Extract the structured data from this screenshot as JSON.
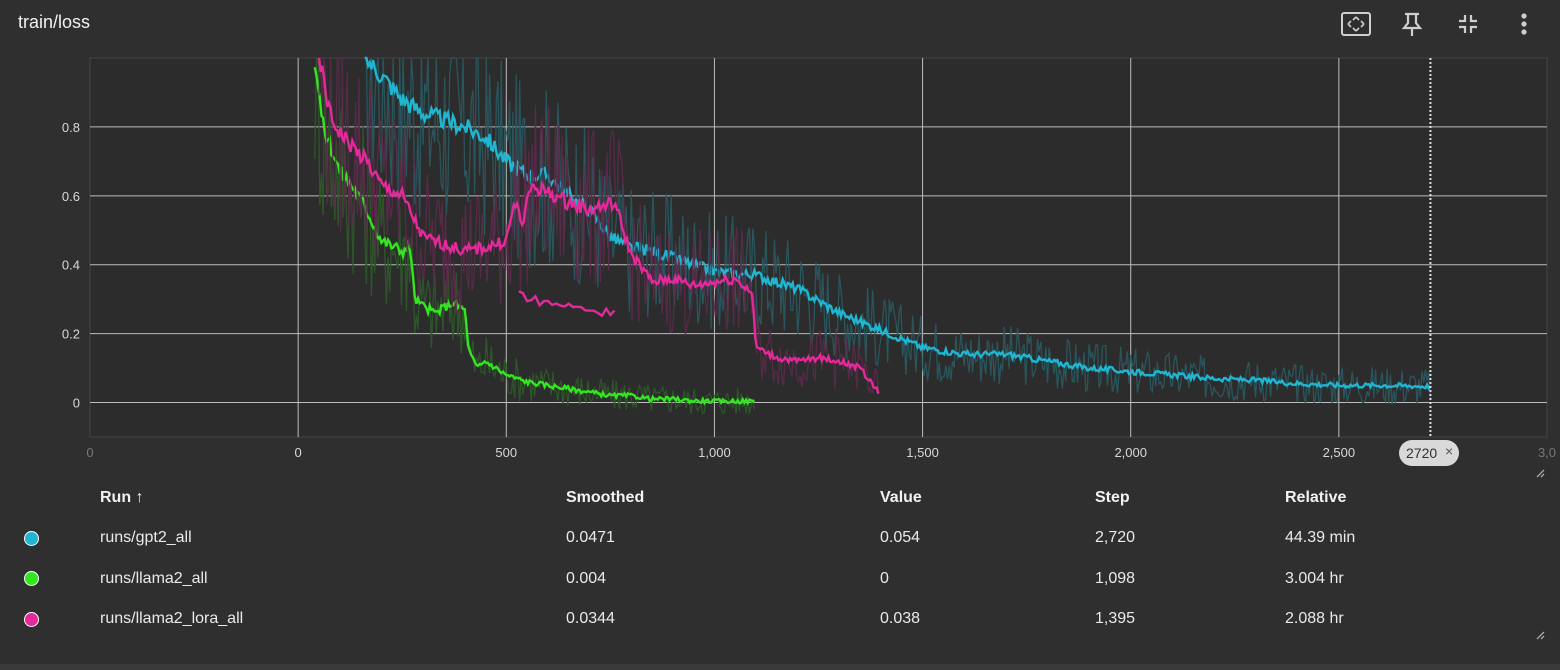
{
  "panel": {
    "title": "train/loss"
  },
  "toolbar": [
    {
      "name": "fit-domain-icon"
    },
    {
      "name": "pin-icon"
    },
    {
      "name": "collapse-icon"
    },
    {
      "name": "more-vert-icon"
    }
  ],
  "step_badge": {
    "label": "2720",
    "close": "×"
  },
  "table": {
    "headers": {
      "run": "Run ↑",
      "smoothed": "Smoothed",
      "value": "Value",
      "step": "Step",
      "relative": "Relative"
    },
    "rows": [
      {
        "color": "#1fb6d2",
        "run": "runs/gpt2_all",
        "smoothed": "0.0471",
        "value": "0.054",
        "step": "2,720",
        "relative": "44.39 min"
      },
      {
        "color": "#33e61f",
        "run": "runs/llama2_all",
        "smoothed": "0.004",
        "value": "0",
        "step": "1,098",
        "relative": "3.004 hr"
      },
      {
        "color": "#e4299b",
        "run": "runs/llama2_lora_all",
        "smoothed": "0.0344",
        "value": "0.038",
        "step": "1,395",
        "relative": "2.088 hr"
      }
    ]
  },
  "chart_data": {
    "type": "line",
    "title": "train/loss",
    "xlabel": "Step",
    "ylabel": "",
    "xlim": [
      -500,
      3000
    ],
    "ylim": [
      -0.1,
      1.0
    ],
    "x_ticks": [
      0,
      500,
      1000,
      1500,
      2000,
      2500
    ],
    "x_tick_labels": [
      "0",
      "500",
      "1,000",
      "1,500",
      "2,000",
      "2,500"
    ],
    "x_tick_labels_faint": [
      {
        "v": -500,
        "label": "0"
      },
      {
        "v": 3000,
        "label": "3,0"
      }
    ],
    "y_ticks": [
      0,
      0.2,
      0.4,
      0.6,
      0.8
    ],
    "y_tick_labels": [
      "0",
      "0.2",
      "0.4",
      "0.6",
      "0.8"
    ],
    "cursor_step": 2720,
    "grid": true,
    "series": [
      {
        "name": "runs/gpt2_all",
        "color": "#1fb6d2",
        "raw_color": "#2a5a62",
        "x": [
          160,
          200,
          250,
          300,
          350,
          400,
          450,
          500,
          550,
          600,
          650,
          700,
          750,
          800,
          850,
          900,
          950,
          1000,
          1100,
          1200,
          1300,
          1400,
          1500,
          1600,
          1700,
          1800,
          1900,
          2000,
          2100,
          2200,
          2300,
          2400,
          2500,
          2600,
          2720
        ],
        "y": [
          1.0,
          0.95,
          0.88,
          0.84,
          0.82,
          0.8,
          0.77,
          0.7,
          0.66,
          0.66,
          0.6,
          0.56,
          0.48,
          0.45,
          0.44,
          0.42,
          0.4,
          0.38,
          0.37,
          0.33,
          0.26,
          0.21,
          0.16,
          0.14,
          0.14,
          0.12,
          0.1,
          0.09,
          0.08,
          0.07,
          0.065,
          0.055,
          0.05,
          0.05,
          0.047
        ]
      },
      {
        "name": "runs/llama2_all",
        "color": "#33e61f",
        "raw_color": "#2f5a2a",
        "x": [
          40,
          60,
          80,
          100,
          130,
          160,
          200,
          250,
          270,
          280,
          300,
          330,
          370,
          400,
          410,
          430,
          450,
          500,
          550,
          600,
          650,
          700,
          750,
          800,
          850,
          900,
          950,
          1000,
          1050,
          1098
        ],
        "y": [
          1.0,
          0.8,
          0.74,
          0.67,
          0.63,
          0.57,
          0.47,
          0.44,
          0.45,
          0.3,
          0.28,
          0.26,
          0.29,
          0.27,
          0.15,
          0.1,
          0.12,
          0.08,
          0.06,
          0.05,
          0.04,
          0.03,
          0.02,
          0.02,
          0.01,
          0.01,
          0.005,
          0.004,
          0.004,
          0.004
        ]
      },
      {
        "name": "runs/llama2_lora_all",
        "color": "#e4299b",
        "raw_color": "#5c2a4a",
        "x": [
          50,
          80,
          110,
          140,
          170,
          200,
          250,
          300,
          350,
          400,
          450,
          500,
          520,
          540,
          560,
          600,
          650,
          700,
          760,
          800,
          820,
          850,
          900,
          950,
          1000,
          1050,
          1090,
          1100,
          1150,
          1200,
          1250,
          1300,
          1350,
          1395
        ],
        "y": [
          1.0,
          0.82,
          0.77,
          0.73,
          0.69,
          0.63,
          0.6,
          0.48,
          0.46,
          0.44,
          0.45,
          0.47,
          0.58,
          0.52,
          0.63,
          0.61,
          0.58,
          0.56,
          0.58,
          0.43,
          0.4,
          0.35,
          0.36,
          0.34,
          0.35,
          0.36,
          0.32,
          0.16,
          0.13,
          0.12,
          0.13,
          0.12,
          0.1,
          0.03
        ]
      },
      {
        "name": "runs/llama2_lora_all (segment)",
        "color": "#e4299b",
        "raw_color": "#5c2a4a",
        "x": [
          530,
          560,
          600,
          650,
          700,
          730,
          760
        ],
        "y": [
          0.32,
          0.3,
          0.29,
          0.28,
          0.27,
          0.26,
          0.27
        ]
      }
    ]
  }
}
